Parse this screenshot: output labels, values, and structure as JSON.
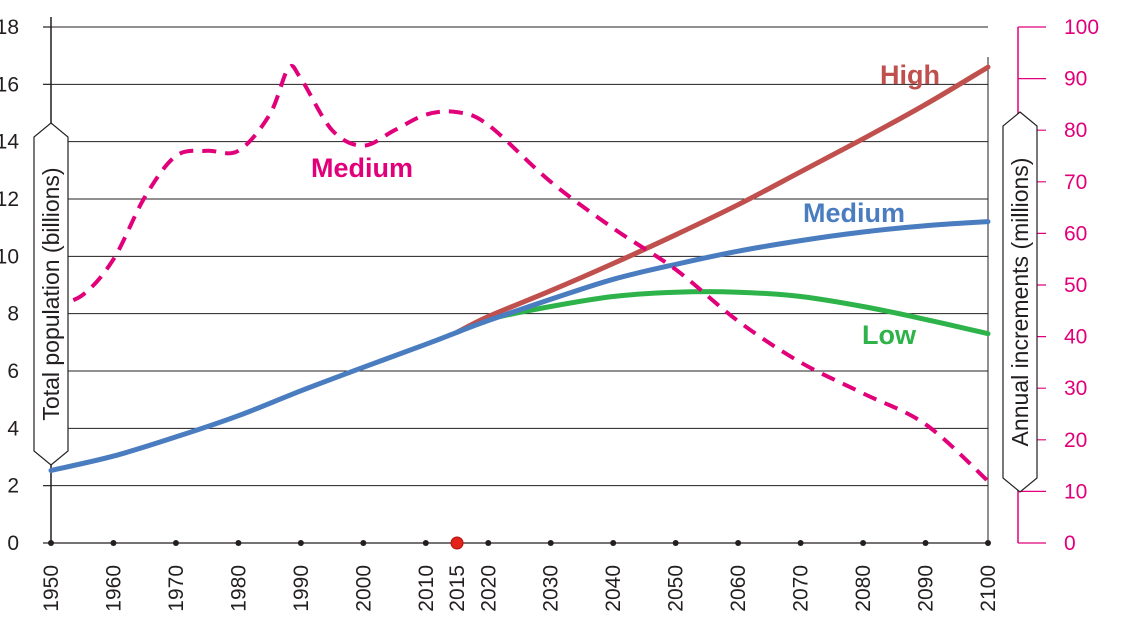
{
  "chart_data": {
    "type": "line",
    "title": "",
    "xlabel": "",
    "ylabel": "Total population (billions)",
    "y2label": "Annual increments (millions)",
    "x_ticks": [
      "1950",
      "1960",
      "1970",
      "1980",
      "1990",
      "2000",
      "2010",
      "2015",
      "2020",
      "2030",
      "2040",
      "2050",
      "2060",
      "2070",
      "2080",
      "2090",
      "2100"
    ],
    "highlight_year": "2015",
    "xlim": [
      1950,
      2100
    ],
    "ylim": [
      0,
      18
    ],
    "y_ticks": [
      "0",
      "2",
      "4",
      "6",
      "8",
      "10",
      "12",
      "14",
      "16",
      "18"
    ],
    "y2lim": [
      0,
      100
    ],
    "y2_ticks": [
      "0",
      "10",
      "20",
      "30",
      "40",
      "50",
      "60",
      "70",
      "80",
      "90",
      "100"
    ],
    "grid": true,
    "colors": {
      "high": "#c0504d",
      "medium": "#4a7cc0",
      "low": "#2db34a",
      "increments": "#e2007a",
      "axis": "#231f20",
      "highlight": "#e2231a"
    },
    "series": [
      {
        "name": "High",
        "axis": "left",
        "style": "solid",
        "x": [
          2015,
          2020,
          2030,
          2040,
          2050,
          2060,
          2070,
          2080,
          2090,
          2100
        ],
        "y": [
          7.35,
          7.9,
          8.8,
          9.75,
          10.75,
          11.8,
          12.95,
          14.1,
          15.3,
          16.6
        ]
      },
      {
        "name": "Medium",
        "axis": "left",
        "style": "solid",
        "x": [
          1950,
          1960,
          1970,
          1980,
          1990,
          2000,
          2010,
          2015,
          2020,
          2030,
          2040,
          2050,
          2060,
          2070,
          2080,
          2090,
          2100
        ],
        "y": [
          2.53,
          3.03,
          3.7,
          4.44,
          5.31,
          6.13,
          6.93,
          7.35,
          7.76,
          8.5,
          9.2,
          9.72,
          10.18,
          10.55,
          10.85,
          11.07,
          11.21
        ]
      },
      {
        "name": "Low",
        "axis": "left",
        "style": "solid",
        "x": [
          2015,
          2020,
          2030,
          2040,
          2050,
          2060,
          2070,
          2080,
          2090,
          2100
        ],
        "y": [
          7.35,
          7.8,
          8.25,
          8.6,
          8.75,
          8.75,
          8.6,
          8.25,
          7.8,
          7.3
        ]
      },
      {
        "name": "Medium",
        "axis": "right",
        "style": "dashed",
        "x": [
          1950,
          1955,
          1960,
          1965,
          1970,
          1975,
          1980,
          1985,
          1988,
          1990,
          1995,
          2000,
          2005,
          2010,
          2015,
          2020,
          2030,
          2040,
          2050,
          2060,
          2070,
          2080,
          2090,
          2100
        ],
        "y": [
          46,
          48,
          55,
          67,
          75,
          76,
          76,
          83,
          92,
          90,
          80,
          77,
          80,
          83,
          83.5,
          81,
          70,
          61,
          53,
          43,
          35,
          29,
          23,
          12
        ]
      }
    ],
    "labels": {
      "high": "High",
      "medium": "Medium",
      "low": "Low",
      "increments_medium": "Medium"
    }
  }
}
